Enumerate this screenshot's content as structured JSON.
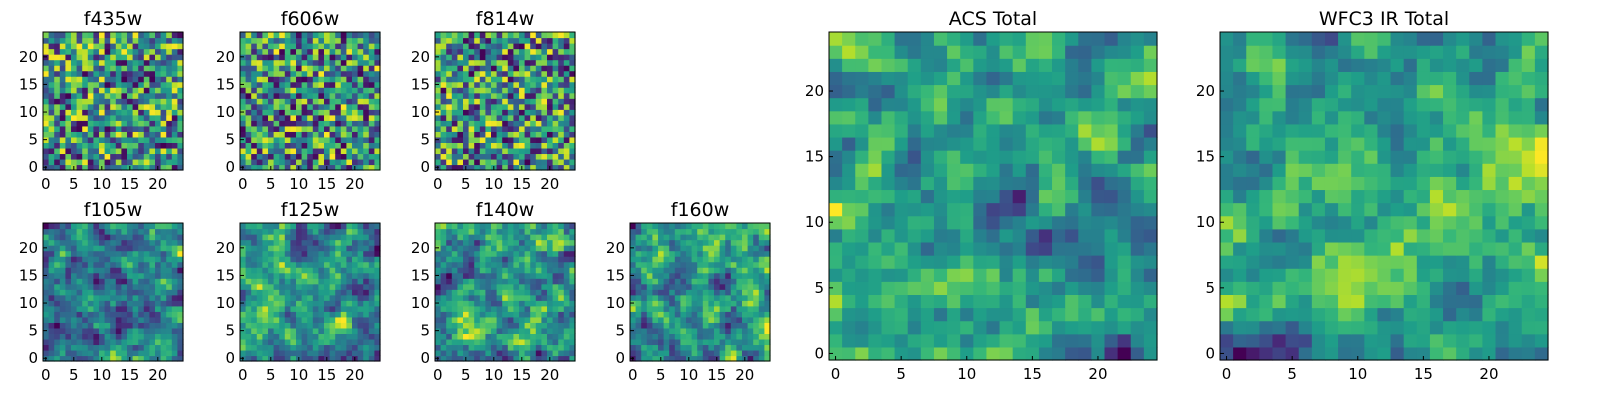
{
  "chart_data": [
    {
      "type": "heatmap",
      "title": "f435w",
      "size": 25,
      "colormap": "viridis",
      "xticks": [
        0,
        5,
        10,
        15,
        20
      ],
      "yticks": [
        0,
        5,
        10,
        15,
        20
      ],
      "grid": false,
      "seed": 11,
      "smooth": 0
    },
    {
      "type": "heatmap",
      "title": "f606w",
      "size": 25,
      "colormap": "viridis",
      "xticks": [
        0,
        5,
        10,
        15,
        20
      ],
      "yticks": [
        0,
        5,
        10,
        15,
        20
      ],
      "grid": false,
      "seed": 23,
      "smooth": 0
    },
    {
      "type": "heatmap",
      "title": "f814w",
      "size": 25,
      "colormap": "viridis",
      "xticks": [
        0,
        5,
        10,
        15,
        20
      ],
      "yticks": [
        0,
        5,
        10,
        15,
        20
      ],
      "grid": false,
      "seed": 37,
      "smooth": 0
    },
    {
      "type": "heatmap",
      "title": "f105w",
      "size": 25,
      "colormap": "viridis",
      "xticks": [
        0,
        5,
        10,
        15,
        20
      ],
      "yticks": [
        0,
        5,
        10,
        15,
        20
      ],
      "grid": false,
      "seed": 41,
      "smooth": 1
    },
    {
      "type": "heatmap",
      "title": "f125w",
      "size": 25,
      "colormap": "viridis",
      "xticks": [
        0,
        5,
        10,
        15,
        20
      ],
      "yticks": [
        0,
        5,
        10,
        15,
        20
      ],
      "grid": false,
      "seed": 53,
      "smooth": 1
    },
    {
      "type": "heatmap",
      "title": "f140w",
      "size": 25,
      "colormap": "viridis",
      "xticks": [
        0,
        5,
        10,
        15,
        20
      ],
      "yticks": [
        0,
        5,
        10,
        15,
        20
      ],
      "grid": false,
      "seed": 67,
      "smooth": 1
    },
    {
      "type": "heatmap",
      "title": "f160w",
      "size": 25,
      "colormap": "viridis",
      "xticks": [
        0,
        5,
        10,
        15,
        20
      ],
      "yticks": [
        0,
        5,
        10,
        15,
        20
      ],
      "grid": false,
      "seed": 79,
      "smooth": 2
    },
    {
      "type": "heatmap",
      "title": "ACS Total",
      "size": 25,
      "colormap": "viridis",
      "xticks": [
        0,
        5,
        10,
        15,
        20
      ],
      "yticks": [
        0,
        5,
        10,
        15,
        20
      ],
      "grid": false,
      "seed": 83,
      "smooth": 1
    },
    {
      "type": "heatmap",
      "title": "WFC3 IR Total",
      "size": 25,
      "colormap": "viridis",
      "xticks": [
        0,
        5,
        10,
        15,
        20
      ],
      "yticks": [
        0,
        5,
        10,
        15,
        20
      ],
      "grid": false,
      "seed": 97,
      "smooth": 2
    }
  ]
}
